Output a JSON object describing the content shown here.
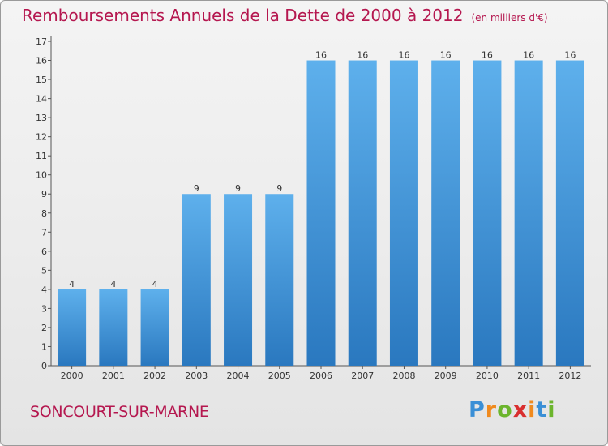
{
  "title": "Remboursements Annuels de la Dette de 2000 à 2012",
  "unit": "(en milliers d'€)",
  "city": "SONCOURT-SUR-MARNE",
  "logo": {
    "letters": [
      "P",
      "r",
      "o",
      "x",
      "i",
      "t",
      "i"
    ],
    "colors": [
      "#3a8fd6",
      "#f08a1e",
      "#6cb52d",
      "#d92f2f",
      "#f08a1e",
      "#3a8fd6",
      "#6cb52d"
    ]
  },
  "colors": {
    "bar_top": "#5eb0ec",
    "bar_bottom": "#2a78bf",
    "title": "#b5174f"
  },
  "chart_data": {
    "type": "bar",
    "categories": [
      "2000",
      "2001",
      "2002",
      "2003",
      "2004",
      "2005",
      "2006",
      "2007",
      "2008",
      "2009",
      "2010",
      "2011",
      "2012"
    ],
    "values": [
      4,
      4,
      4,
      9,
      9,
      9,
      16,
      16,
      16,
      16,
      16,
      16,
      16
    ],
    "ylim": [
      0,
      17
    ],
    "yticks": [
      0,
      1,
      2,
      3,
      4,
      5,
      6,
      7,
      8,
      9,
      10,
      11,
      12,
      13,
      14,
      15,
      16,
      17
    ],
    "grid": false,
    "data_labels": true
  }
}
